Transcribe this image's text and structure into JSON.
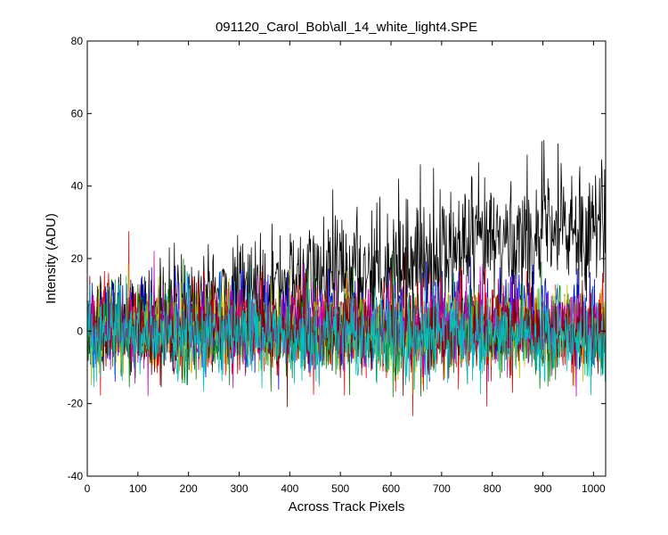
{
  "chart_data": {
    "type": "line",
    "title": "091120_Carol_Bob\\all_14_white_light4.SPE",
    "xlabel": "Across Track Pixels",
    "ylabel": "Intensity (ADU)",
    "xlim": [
      0,
      1024
    ],
    "ylim": [
      -40,
      80
    ],
    "xticks": [
      0,
      100,
      200,
      300,
      400,
      500,
      600,
      700,
      800,
      900,
      1000
    ],
    "yticks": [
      -40,
      -20,
      0,
      20,
      40,
      60,
      80
    ],
    "grid": false,
    "legend": "none",
    "points_per_series": 1024,
    "series": [
      {
        "color": "#000000",
        "baseline_start": 3,
        "baseline_end": 30,
        "noise_amplitude": 12
      },
      {
        "color": "#0000ff",
        "baseline_start": 2,
        "baseline_end": 3,
        "noise_amplitude": 10
      },
      {
        "color": "#ff0000",
        "baseline_start": 1,
        "baseline_end": 0,
        "noise_amplitude": 10
      },
      {
        "color": "#008000",
        "baseline_start": 0,
        "baseline_end": -1,
        "noise_amplitude": 10
      },
      {
        "color": "#bfbf00",
        "baseline_start": 0,
        "baseline_end": 1,
        "noise_amplitude": 9
      },
      {
        "color": "#bf00bf",
        "baseline_start": 1,
        "baseline_end": 2,
        "noise_amplitude": 9
      },
      {
        "color": "#800000",
        "baseline_start": 0,
        "baseline_end": 0,
        "noise_amplitude": 9
      },
      {
        "color": "#00bfbf",
        "baseline_start": -1,
        "baseline_end": -2,
        "noise_amplitude": 10
      }
    ]
  }
}
